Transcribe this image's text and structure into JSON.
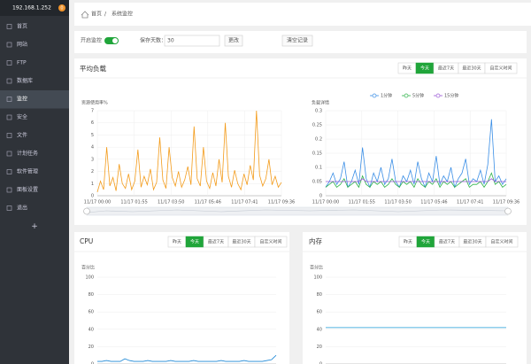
{
  "sidebar": {
    "host": "192.168.1.252",
    "badge": "0",
    "menu": [
      "首页",
      "网站",
      "FTP",
      "数据库",
      "监控",
      "安全",
      "文件",
      "计划任务",
      "软件管理",
      "面板设置",
      "退出"
    ],
    "active": 4,
    "add": "+"
  },
  "breadcrumb": {
    "items": [
      "首页",
      "系统监控"
    ],
    "separator": "/"
  },
  "controls": {
    "monitor_label": "开启监控",
    "monitor_on": true,
    "days_label": "保存天数：",
    "days_value": "30",
    "change": "更改",
    "clear": "清空记录"
  },
  "range_buttons": [
    "昨天",
    "今天",
    "最近7天",
    "最近30天",
    "自定义时间"
  ],
  "range_active": 1,
  "chart_data": [
    {
      "type": "line",
      "title": "平均负载",
      "subtitle": "资源使用率%",
      "ylim": [
        0,
        7
      ],
      "yticks": [
        0,
        1,
        2,
        3,
        4,
        5,
        6,
        7
      ],
      "grid": true,
      "xlabels": [
        "11/17 00:00",
        "11/17 01:55",
        "11/17 03:50",
        "11/17 05:46",
        "11/17 07:41",
        "11/17 09:36"
      ],
      "series": [
        {
          "name": null,
          "color": "#f39b1a",
          "values": [
            0.3,
            1.2,
            0.5,
            4,
            0.8,
            1.5,
            0.4,
            2.6,
            1,
            0.6,
            1.8,
            0.5,
            1.2,
            3.8,
            0.7,
            1.6,
            0.9,
            2.2,
            0.5,
            1.1,
            4.8,
            1.3,
            0.6,
            4,
            1.5,
            0.8,
            2,
            0.7,
            1.3,
            2.4,
            0.9,
            5.7,
            1.4,
            0.8,
            4,
            1.2,
            0.6,
            1.9,
            0.8,
            3,
            1.1,
            6,
            1.6,
            0.7,
            2.1,
            1,
            0.5,
            1.8,
            0.9,
            2.5,
            1.3,
            7,
            1.7,
            0.8,
            1.4,
            3,
            0.9,
            1.6,
            0.7,
            1.1
          ]
        }
      ]
    },
    {
      "type": "line",
      "subtitle": "负载详情",
      "ylim": [
        0,
        0.3
      ],
      "yticks": [
        0,
        0.05,
        0.1,
        0.15,
        0.2,
        0.25,
        0.3
      ],
      "grid": true,
      "legend": "top",
      "xlabels": [
        "11/17 00:00",
        "11/17 01:55",
        "11/17 03:50",
        "11/17 05:46",
        "11/17 07:41",
        "11/17 09:36"
      ],
      "series": [
        {
          "name": "1分钟",
          "color": "#3a8ee6",
          "values": [
            0.03,
            0.05,
            0.08,
            0.04,
            0.06,
            0.12,
            0.03,
            0.05,
            0.09,
            0.04,
            0.17,
            0.06,
            0.03,
            0.08,
            0.05,
            0.1,
            0.04,
            0.06,
            0.13,
            0.05,
            0.03,
            0.07,
            0.05,
            0.09,
            0.04,
            0.12,
            0.06,
            0.03,
            0.08,
            0.05,
            0.14,
            0.04,
            0.07,
            0.05,
            0.1,
            0.03,
            0.06,
            0.08,
            0.13,
            0.04,
            0.06,
            0.05,
            0.09,
            0.04,
            0.11,
            0.27,
            0.05,
            0.07,
            0.04,
            0.06
          ]
        },
        {
          "name": "5分钟",
          "color": "#2fb34a",
          "values": [
            0.03,
            0.04,
            0.05,
            0.03,
            0.04,
            0.06,
            0.03,
            0.04,
            0.05,
            0.03,
            0.07,
            0.04,
            0.03,
            0.05,
            0.04,
            0.05,
            0.03,
            0.04,
            0.06,
            0.04,
            0.03,
            0.05,
            0.04,
            0.05,
            0.03,
            0.06,
            0.04,
            0.03,
            0.05,
            0.04,
            0.06,
            0.03,
            0.05,
            0.04,
            0.05,
            0.03,
            0.04,
            0.05,
            0.06,
            0.03,
            0.04,
            0.04,
            0.05,
            0.03,
            0.05,
            0.08,
            0.04,
            0.05,
            0.03,
            0.04
          ]
        },
        {
          "name": "15分钟",
          "color": "#9b59d6",
          "values": [
            0.05,
            0.05,
            0.05,
            0.05,
            0.05,
            0.05,
            0.05,
            0.05,
            0.05,
            0.05,
            0.06,
            0.05,
            0.05,
            0.05,
            0.05,
            0.05,
            0.05,
            0.05,
            0.05,
            0.05,
            0.05,
            0.05,
            0.05,
            0.05,
            0.05,
            0.05,
            0.05,
            0.05,
            0.05,
            0.05,
            0.05,
            0.05,
            0.05,
            0.05,
            0.05,
            0.05,
            0.05,
            0.05,
            0.05,
            0.05,
            0.05,
            0.05,
            0.05,
            0.05,
            0.05,
            0.06,
            0.05,
            0.05,
            0.05,
            0.05
          ]
        }
      ]
    },
    {
      "type": "line",
      "title": "CPU",
      "subtitle": "百分比",
      "ylim": [
        0,
        100
      ],
      "yticks": [
        0,
        20,
        40,
        60,
        80,
        100
      ],
      "grid": true,
      "series": [
        {
          "name": null,
          "color": "#1e88d6",
          "values": [
            3,
            3,
            4,
            3,
            3,
            3,
            6,
            4,
            3,
            3,
            3,
            4,
            3,
            3,
            3,
            3,
            4,
            3,
            3,
            3,
            3,
            4,
            3,
            3,
            3,
            3,
            3,
            4,
            3,
            3,
            3,
            3,
            4,
            3,
            3,
            3,
            3,
            4,
            5,
            10
          ]
        }
      ]
    },
    {
      "type": "line",
      "title": "内存",
      "subtitle": "百分比",
      "ylim": [
        0,
        100
      ],
      "yticks": [
        0,
        20,
        40,
        60,
        80,
        100
      ],
      "grid": true,
      "series": [
        {
          "name": null,
          "color": "#1e9bd7",
          "values": [
            42,
            42,
            42,
            42,
            42,
            42,
            42,
            42,
            42,
            42
          ]
        }
      ]
    }
  ]
}
